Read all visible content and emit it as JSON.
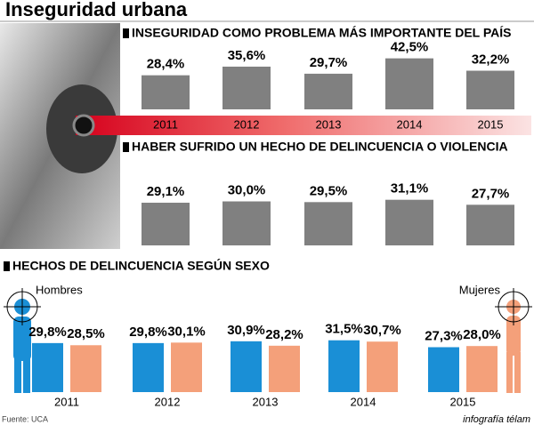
{
  "title": "Inseguridad urbana",
  "source": "Fuente: UCA",
  "credit": "infografía télam",
  "chart_data": [
    {
      "type": "bar",
      "title": "INSEGURIDAD COMO PROBLEMA MÁS IMPORTANTE DEL PAÍS",
      "categories": [
        "2011",
        "2012",
        "2013",
        "2014",
        "2015"
      ],
      "values": [
        28.4,
        35.6,
        29.7,
        42.5,
        32.2
      ],
      "value_labels": [
        "28,4%",
        "35,6%",
        "29,7%",
        "42,5%",
        "32,2%"
      ],
      "color": "#808080"
    },
    {
      "type": "bar",
      "title": "HABER SUFRIDO UN HECHO DE DELINCUENCIA O VIOLENCIA",
      "values": [
        29.1,
        30.0,
        29.5,
        31.1,
        27.7
      ],
      "value_labels": [
        "29,1%",
        "30,0%",
        "29,5%",
        "31,1%",
        "27,7%"
      ],
      "color": "#808080"
    },
    {
      "type": "bar",
      "title": "HECHOS DE DELINCUENCIA SEGÚN SEXO",
      "categories": [
        "2011",
        "2012",
        "2013",
        "2014",
        "2015"
      ],
      "series": [
        {
          "name": "Hombres",
          "color": "#1a8fd6",
          "values": [
            29.8,
            29.8,
            30.9,
            31.5,
            27.3
          ],
          "value_labels": [
            "29,8%",
            "29,8%",
            "30,9%",
            "31,5%",
            "27,3%"
          ]
        },
        {
          "name": "Mujeres",
          "color": "#f4a07a",
          "values": [
            28.5,
            30.1,
            28.2,
            30.7,
            28.0
          ],
          "value_labels": [
            "28,5%",
            "30,1%",
            "28,2%",
            "30,7%",
            "28,0%"
          ]
        }
      ]
    }
  ]
}
